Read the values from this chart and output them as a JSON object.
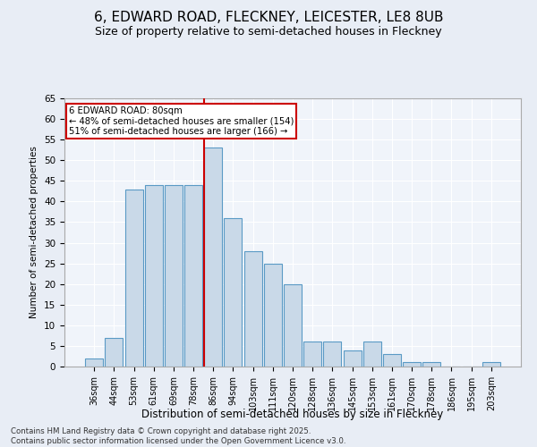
{
  "title1": "6, EDWARD ROAD, FLECKNEY, LEICESTER, LE8 8UB",
  "title2": "Size of property relative to semi-detached houses in Fleckney",
  "xlabel": "Distribution of semi-detached houses by size in Fleckney",
  "ylabel": "Number of semi-detached properties",
  "categories": [
    "36sqm",
    "44sqm",
    "53sqm",
    "61sqm",
    "69sqm",
    "78sqm",
    "86sqm",
    "94sqm",
    "103sqm",
    "111sqm",
    "120sqm",
    "128sqm",
    "136sqm",
    "145sqm",
    "153sqm",
    "161sqm",
    "170sqm",
    "178sqm",
    "186sqm",
    "195sqm",
    "203sqm"
  ],
  "values": [
    2,
    7,
    43,
    44,
    44,
    44,
    53,
    36,
    28,
    25,
    20,
    6,
    6,
    4,
    6,
    3,
    1,
    1,
    0,
    0,
    1
  ],
  "bar_color": "#c9d9e8",
  "bar_edge_color": "#5a9ac5",
  "vline_index": 6,
  "vline_color": "#cc0000",
  "annotation_title": "6 EDWARD ROAD: 80sqm",
  "annotation_line1": "← 48% of semi-detached houses are smaller (154)",
  "annotation_line2": "51% of semi-detached houses are larger (166) →",
  "annotation_box_color": "#cc0000",
  "ylim": [
    0,
    65
  ],
  "yticks": [
    0,
    5,
    10,
    15,
    20,
    25,
    30,
    35,
    40,
    45,
    50,
    55,
    60,
    65
  ],
  "footer1": "Contains HM Land Registry data © Crown copyright and database right 2025.",
  "footer2": "Contains public sector information licensed under the Open Government Licence v3.0.",
  "bg_color": "#e8edf5",
  "plot_bg_color": "#f0f4fa"
}
